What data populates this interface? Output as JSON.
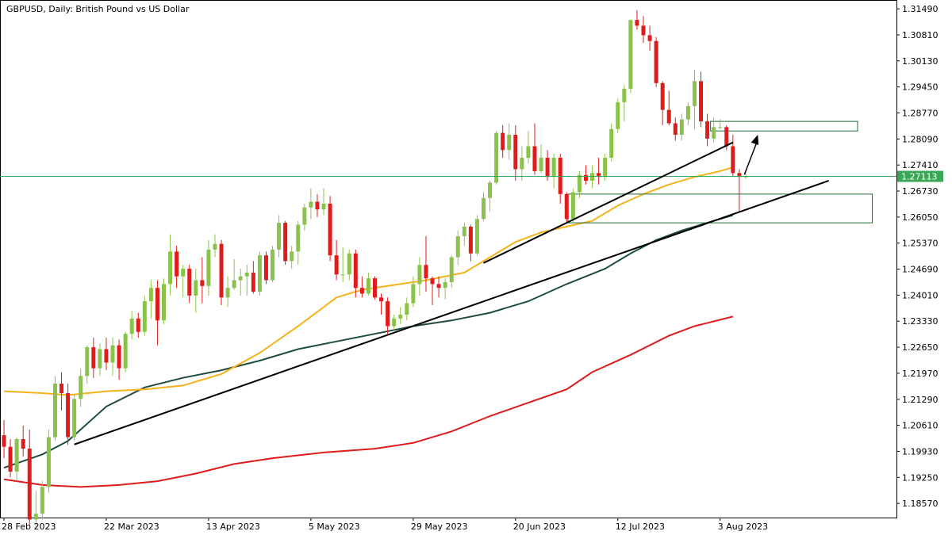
{
  "chart_data": {
    "type": "candlestick",
    "title": "GBPUSD, Daily:  British Pound vs US Dollar",
    "xlabel": "",
    "ylabel": "",
    "ylim": [
      1.182,
      1.317
    ],
    "y_ticks": [
      "1.31490",
      "1.30810",
      "1.30130",
      "1.29450",
      "1.28770",
      "1.28090",
      "1.27410",
      "1.26730",
      "1.26050",
      "1.25370",
      "1.24690",
      "1.24010",
      "1.23330",
      "1.22650",
      "1.21970",
      "1.21290",
      "1.20610",
      "1.19930",
      "1.19250",
      "1.18570"
    ],
    "x_ticks": [
      {
        "label": "28 Feb 2023",
        "index": 0
      },
      {
        "label": "22 Mar 2023",
        "index": 16
      },
      {
        "label": "13 Apr 2023",
        "index": 32
      },
      {
        "label": "5 May 2023",
        "index": 48
      },
      {
        "label": "29 May 2023",
        "index": 64
      },
      {
        "label": "20 Jun 2023",
        "index": 80
      },
      {
        "label": "12 Jul 2023",
        "index": 96
      },
      {
        "label": "3 Aug 2023",
        "index": 112
      }
    ],
    "current_price": {
      "value": 1.27113,
      "label": "1.27113"
    },
    "colors": {
      "bull": "#8bc34a",
      "bear": "#e01b1b",
      "ma50": "#f5b21a",
      "ma100": "#1d4d40",
      "ma200": "#e01b1b",
      "price_line": "#3aa757",
      "zone": "#1f6b35",
      "trendline": "#000000"
    },
    "candles": [
      {
        "o": 1.2035,
        "h": 1.2075,
        "l": 1.1975,
        "c": 1.2005
      },
      {
        "o": 1.2005,
        "h": 1.2025,
        "l": 1.1925,
        "c": 1.194
      },
      {
        "o": 1.194,
        "h": 1.203,
        "l": 1.1915,
        "c": 1.2025
      },
      {
        "o": 1.2025,
        "h": 1.206,
        "l": 1.198,
        "c": 1.2
      },
      {
        "o": 1.2,
        "h": 1.205,
        "l": 1.18,
        "c": 1.1815
      },
      {
        "o": 1.1815,
        "h": 1.189,
        "l": 1.1795,
        "c": 1.183
      },
      {
        "o": 1.183,
        "h": 1.1915,
        "l": 1.1815,
        "c": 1.19
      },
      {
        "o": 1.19,
        "h": 1.205,
        "l": 1.1885,
        "c": 1.203
      },
      {
        "o": 1.203,
        "h": 1.219,
        "l": 1.202,
        "c": 1.217
      },
      {
        "o": 1.217,
        "h": 1.22,
        "l": 1.21,
        "c": 1.2145
      },
      {
        "o": 1.2145,
        "h": 1.217,
        "l": 1.201,
        "c": 1.203
      },
      {
        "o": 1.203,
        "h": 1.214,
        "l": 1.202,
        "c": 1.213
      },
      {
        "o": 1.213,
        "h": 1.221,
        "l": 1.211,
        "c": 1.219
      },
      {
        "o": 1.219,
        "h": 1.227,
        "l": 1.217,
        "c": 1.2265
      },
      {
        "o": 1.2265,
        "h": 1.229,
        "l": 1.2185,
        "c": 1.221
      },
      {
        "o": 1.221,
        "h": 1.2275,
        "l": 1.219,
        "c": 1.226
      },
      {
        "o": 1.226,
        "h": 1.229,
        "l": 1.2205,
        "c": 1.2225
      },
      {
        "o": 1.2225,
        "h": 1.229,
        "l": 1.219,
        "c": 1.227
      },
      {
        "o": 1.227,
        "h": 1.2285,
        "l": 1.218,
        "c": 1.221
      },
      {
        "o": 1.221,
        "h": 1.2305,
        "l": 1.22,
        "c": 1.23
      },
      {
        "o": 1.23,
        "h": 1.236,
        "l": 1.2285,
        "c": 1.234
      },
      {
        "o": 1.234,
        "h": 1.2355,
        "l": 1.229,
        "c": 1.2305
      },
      {
        "o": 1.2305,
        "h": 1.24,
        "l": 1.2295,
        "c": 1.2385
      },
      {
        "o": 1.2385,
        "h": 1.244,
        "l": 1.234,
        "c": 1.242
      },
      {
        "o": 1.242,
        "h": 1.244,
        "l": 1.227,
        "c": 1.2335
      },
      {
        "o": 1.2335,
        "h": 1.2445,
        "l": 1.2325,
        "c": 1.243
      },
      {
        "o": 1.243,
        "h": 1.256,
        "l": 1.24,
        "c": 1.2515
      },
      {
        "o": 1.2515,
        "h": 1.253,
        "l": 1.242,
        "c": 1.245
      },
      {
        "o": 1.245,
        "h": 1.248,
        "l": 1.2395,
        "c": 1.247
      },
      {
        "o": 1.247,
        "h": 1.248,
        "l": 1.238,
        "c": 1.24
      },
      {
        "o": 1.24,
        "h": 1.247,
        "l": 1.2355,
        "c": 1.244
      },
      {
        "o": 1.244,
        "h": 1.25,
        "l": 1.238,
        "c": 1.2425
      },
      {
        "o": 1.2425,
        "h": 1.2545,
        "l": 1.24,
        "c": 1.252
      },
      {
        "o": 1.252,
        "h": 1.256,
        "l": 1.25,
        "c": 1.2535
      },
      {
        "o": 1.2535,
        "h": 1.2545,
        "l": 1.2375,
        "c": 1.2395
      },
      {
        "o": 1.2395,
        "h": 1.245,
        "l": 1.237,
        "c": 1.242
      },
      {
        "o": 1.242,
        "h": 1.2495,
        "l": 1.2415,
        "c": 1.244
      },
      {
        "o": 1.244,
        "h": 1.247,
        "l": 1.24,
        "c": 1.245
      },
      {
        "o": 1.245,
        "h": 1.248,
        "l": 1.24,
        "c": 1.246
      },
      {
        "o": 1.246,
        "h": 1.249,
        "l": 1.2405,
        "c": 1.241
      },
      {
        "o": 1.241,
        "h": 1.2515,
        "l": 1.24,
        "c": 1.2505
      },
      {
        "o": 1.2505,
        "h": 1.2515,
        "l": 1.243,
        "c": 1.244
      },
      {
        "o": 1.244,
        "h": 1.253,
        "l": 1.2435,
        "c": 1.252
      },
      {
        "o": 1.252,
        "h": 1.261,
        "l": 1.25,
        "c": 1.259
      },
      {
        "o": 1.259,
        "h": 1.2595,
        "l": 1.248,
        "c": 1.249
      },
      {
        "o": 1.249,
        "h": 1.253,
        "l": 1.247,
        "c": 1.2515
      },
      {
        "o": 1.2515,
        "h": 1.2595,
        "l": 1.248,
        "c": 1.2585
      },
      {
        "o": 1.2585,
        "h": 1.264,
        "l": 1.257,
        "c": 1.263
      },
      {
        "o": 1.263,
        "h": 1.268,
        "l": 1.26,
        "c": 1.2645
      },
      {
        "o": 1.2645,
        "h": 1.2665,
        "l": 1.2605,
        "c": 1.2625
      },
      {
        "o": 1.2625,
        "h": 1.268,
        "l": 1.261,
        "c": 1.264
      },
      {
        "o": 1.264,
        "h": 1.266,
        "l": 1.249,
        "c": 1.2505
      },
      {
        "o": 1.2505,
        "h": 1.2545,
        "l": 1.244,
        "c": 1.2455
      },
      {
        "o": 1.2455,
        "h": 1.2525,
        "l": 1.2435,
        "c": 1.2455
      },
      {
        "o": 1.2455,
        "h": 1.252,
        "l": 1.244,
        "c": 1.251
      },
      {
        "o": 1.251,
        "h": 1.252,
        "l": 1.2395,
        "c": 1.242
      },
      {
        "o": 1.242,
        "h": 1.245,
        "l": 1.2395,
        "c": 1.2405
      },
      {
        "o": 1.2405,
        "h": 1.246,
        "l": 1.24,
        "c": 1.2445
      },
      {
        "o": 1.2445,
        "h": 1.245,
        "l": 1.239,
        "c": 1.2395
      },
      {
        "o": 1.2395,
        "h": 1.2405,
        "l": 1.235,
        "c": 1.2385
      },
      {
        "o": 1.2385,
        "h": 1.2395,
        "l": 1.23,
        "c": 1.232
      },
      {
        "o": 1.232,
        "h": 1.235,
        "l": 1.231,
        "c": 1.234
      },
      {
        "o": 1.234,
        "h": 1.237,
        "l": 1.2325,
        "c": 1.235
      },
      {
        "o": 1.235,
        "h": 1.2395,
        "l": 1.2335,
        "c": 1.238
      },
      {
        "o": 1.238,
        "h": 1.245,
        "l": 1.237,
        "c": 1.243
      },
      {
        "o": 1.243,
        "h": 1.25,
        "l": 1.24,
        "c": 1.248
      },
      {
        "o": 1.248,
        "h": 1.2555,
        "l": 1.241,
        "c": 1.2445
      },
      {
        "o": 1.2445,
        "h": 1.245,
        "l": 1.2375,
        "c": 1.243
      },
      {
        "o": 1.243,
        "h": 1.245,
        "l": 1.2395,
        "c": 1.242
      },
      {
        "o": 1.242,
        "h": 1.2445,
        "l": 1.239,
        "c": 1.2435
      },
      {
        "o": 1.2435,
        "h": 1.2505,
        "l": 1.242,
        "c": 1.25
      },
      {
        "o": 1.25,
        "h": 1.257,
        "l": 1.248,
        "c": 1.2555
      },
      {
        "o": 1.2555,
        "h": 1.259,
        "l": 1.253,
        "c": 1.258
      },
      {
        "o": 1.258,
        "h": 1.2585,
        "l": 1.249,
        "c": 1.251
      },
      {
        "o": 1.251,
        "h": 1.261,
        "l": 1.2505,
        "c": 1.26
      },
      {
        "o": 1.26,
        "h": 1.267,
        "l": 1.2595,
        "c": 1.2655
      },
      {
        "o": 1.2655,
        "h": 1.27,
        "l": 1.262,
        "c": 1.2695
      },
      {
        "o": 1.2695,
        "h": 1.283,
        "l": 1.269,
        "c": 1.2825
      },
      {
        "o": 1.2825,
        "h": 1.2845,
        "l": 1.276,
        "c": 1.278
      },
      {
        "o": 1.278,
        "h": 1.285,
        "l": 1.2755,
        "c": 1.282
      },
      {
        "o": 1.282,
        "h": 1.2845,
        "l": 1.27,
        "c": 1.273
      },
      {
        "o": 1.273,
        "h": 1.279,
        "l": 1.27,
        "c": 1.276
      },
      {
        "o": 1.276,
        "h": 1.283,
        "l": 1.2745,
        "c": 1.279
      },
      {
        "o": 1.279,
        "h": 1.285,
        "l": 1.2715,
        "c": 1.2725
      },
      {
        "o": 1.2725,
        "h": 1.2795,
        "l": 1.272,
        "c": 1.276
      },
      {
        "o": 1.276,
        "h": 1.278,
        "l": 1.27,
        "c": 1.271
      },
      {
        "o": 1.271,
        "h": 1.277,
        "l": 1.268,
        "c": 1.276
      },
      {
        "o": 1.276,
        "h": 1.277,
        "l": 1.264,
        "c": 1.2665
      },
      {
        "o": 1.2665,
        "h": 1.267,
        "l": 1.259,
        "c": 1.26
      },
      {
        "o": 1.26,
        "h": 1.268,
        "l": 1.259,
        "c": 1.267
      },
      {
        "o": 1.267,
        "h": 1.2725,
        "l": 1.2655,
        "c": 1.2715
      },
      {
        "o": 1.2715,
        "h": 1.274,
        "l": 1.269,
        "c": 1.27
      },
      {
        "o": 1.27,
        "h": 1.274,
        "l": 1.268,
        "c": 1.272
      },
      {
        "o": 1.272,
        "h": 1.276,
        "l": 1.269,
        "c": 1.271
      },
      {
        "o": 1.271,
        "h": 1.277,
        "l": 1.27,
        "c": 1.276
      },
      {
        "o": 1.276,
        "h": 1.285,
        "l": 1.275,
        "c": 1.2835
      },
      {
        "o": 1.2835,
        "h": 1.2915,
        "l": 1.2825,
        "c": 1.2905
      },
      {
        "o": 1.2905,
        "h": 1.295,
        "l": 1.2855,
        "c": 1.294
      },
      {
        "o": 1.294,
        "h": 1.312,
        "l": 1.293,
        "c": 1.312
      },
      {
        "o": 1.312,
        "h": 1.3145,
        "l": 1.3095,
        "c": 1.3105
      },
      {
        "o": 1.3105,
        "h": 1.313,
        "l": 1.306,
        "c": 1.308
      },
      {
        "o": 1.308,
        "h": 1.3105,
        "l": 1.304,
        "c": 1.3065
      },
      {
        "o": 1.3065,
        "h": 1.3075,
        "l": 1.2945,
        "c": 1.2955
      },
      {
        "o": 1.2955,
        "h": 1.296,
        "l": 1.2845,
        "c": 1.2885
      },
      {
        "o": 1.2885,
        "h": 1.2935,
        "l": 1.2845,
        "c": 1.285
      },
      {
        "o": 1.285,
        "h": 1.2865,
        "l": 1.2805,
        "c": 1.282
      },
      {
        "o": 1.282,
        "h": 1.2875,
        "l": 1.2805,
        "c": 1.286
      },
      {
        "o": 1.286,
        "h": 1.2905,
        "l": 1.2845,
        "c": 1.2895
      },
      {
        "o": 1.2895,
        "h": 1.299,
        "l": 1.2835,
        "c": 1.296
      },
      {
        "o": 1.296,
        "h": 1.2985,
        "l": 1.284,
        "c": 1.2855
      },
      {
        "o": 1.2855,
        "h": 1.2875,
        "l": 1.279,
        "c": 1.281
      },
      {
        "o": 1.281,
        "h": 1.2865,
        "l": 1.28,
        "c": 1.284
      },
      {
        "o": 1.284,
        "h": 1.286,
        "l": 1.2835,
        "c": 1.284
      },
      {
        "o": 1.284,
        "h": 1.2845,
        "l": 1.278,
        "c": 1.279
      },
      {
        "o": 1.279,
        "h": 1.282,
        "l": 1.271,
        "c": 1.272
      },
      {
        "o": 1.272,
        "h": 1.273,
        "l": 1.262,
        "c": 1.271
      },
      {
        "o": 1.271,
        "h": 1.272,
        "l": 1.2705,
        "c": 1.2711
      }
    ],
    "ma50": [
      [
        0,
        1.215
      ],
      [
        6,
        1.2145
      ],
      [
        10,
        1.214
      ],
      [
        16,
        1.215
      ],
      [
        22,
        1.2155
      ],
      [
        28,
        1.2165
      ],
      [
        34,
        1.2195
      ],
      [
        40,
        1.225
      ],
      [
        46,
        1.232
      ],
      [
        50,
        1.237
      ],
      [
        52,
        1.2395
      ],
      [
        56,
        1.2415
      ],
      [
        60,
        1.2425
      ],
      [
        66,
        1.244
      ],
      [
        72,
        1.246
      ],
      [
        76,
        1.25
      ],
      [
        80,
        1.254
      ],
      [
        84,
        1.2565
      ],
      [
        88,
        1.258
      ],
      [
        92,
        1.2595
      ],
      [
        96,
        1.2635
      ],
      [
        100,
        1.2665
      ],
      [
        104,
        1.269
      ],
      [
        108,
        1.271
      ],
      [
        112,
        1.2725
      ],
      [
        114,
        1.2735
      ]
    ],
    "ma100": [
      [
        0,
        1.195
      ],
      [
        6,
        1.1985
      ],
      [
        10,
        1.202
      ],
      [
        16,
        1.211
      ],
      [
        22,
        1.216
      ],
      [
        28,
        1.2185
      ],
      [
        34,
        1.2205
      ],
      [
        40,
        1.223
      ],
      [
        46,
        1.226
      ],
      [
        52,
        1.228
      ],
      [
        58,
        1.23
      ],
      [
        64,
        1.232
      ],
      [
        70,
        1.2335
      ],
      [
        76,
        1.2355
      ],
      [
        82,
        1.2385
      ],
      [
        88,
        1.243
      ],
      [
        94,
        1.247
      ],
      [
        98,
        1.251
      ],
      [
        102,
        1.2545
      ],
      [
        106,
        1.257
      ],
      [
        110,
        1.259
      ],
      [
        114,
        1.261
      ]
    ],
    "ma200": [
      [
        0,
        1.192
      ],
      [
        6,
        1.1905
      ],
      [
        12,
        1.19
      ],
      [
        18,
        1.1905
      ],
      [
        24,
        1.1915
      ],
      [
        30,
        1.1935
      ],
      [
        36,
        1.196
      ],
      [
        42,
        1.1975
      ],
      [
        50,
        1.199
      ],
      [
        58,
        1.2
      ],
      [
        64,
        1.2015
      ],
      [
        70,
        1.2045
      ],
      [
        76,
        1.2085
      ],
      [
        82,
        1.212
      ],
      [
        88,
        1.2155
      ],
      [
        92,
        1.22
      ],
      [
        98,
        1.2245
      ],
      [
        104,
        1.2295
      ],
      [
        108,
        1.232
      ],
      [
        114,
        1.2345
      ]
    ],
    "trendlines": [
      {
        "from": [
          11,
          1.2011
        ],
        "to": [
          129,
          1.27
        ]
      },
      {
        "from": [
          75,
          1.2485
        ],
        "to": [
          114,
          1.28
        ]
      }
    ],
    "zones": [
      {
        "x0": 110.5,
        "x1": 133.5,
        "y0": 1.2855,
        "y1": 1.283
      },
      {
        "x0": 88.2,
        "x1": 135.8,
        "y0": 1.2665,
        "y1": 1.259
      }
    ],
    "arrow": {
      "from": [
        115.8,
        1.2716
      ],
      "to": [
        117.9,
        1.282
      ]
    }
  }
}
